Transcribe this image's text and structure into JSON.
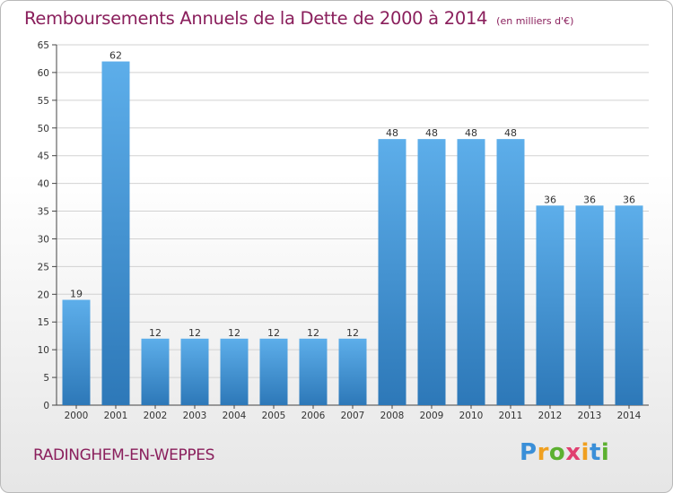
{
  "chart_data": {
    "type": "bar",
    "title": "Remboursements Annuels de la Dette de 2000 à 2014",
    "subtitle": "(en milliers d'€)",
    "categories": [
      "2000",
      "2001",
      "2002",
      "2003",
      "2004",
      "2005",
      "2006",
      "2007",
      "2008",
      "2009",
      "2010",
      "2011",
      "2012",
      "2013",
      "2014"
    ],
    "values": [
      19,
      62,
      12,
      12,
      12,
      12,
      12,
      12,
      48,
      48,
      48,
      48,
      36,
      36,
      36
    ],
    "ylim": [
      0,
      65
    ],
    "yticks": [
      0,
      5,
      10,
      15,
      20,
      25,
      30,
      35,
      40,
      45,
      50,
      55,
      60,
      65
    ],
    "grid": true,
    "bar_color_top": "#5daeea",
    "bar_color_bottom": "#2d78b8"
  },
  "footer": {
    "city": "RADINGHEM-EN-WEPPES",
    "logo_letters": [
      {
        "char": "P",
        "color": "#3a8fd8"
      },
      {
        "char": "r",
        "color": "#f0a020"
      },
      {
        "char": "o",
        "color": "#5cb030"
      },
      {
        "char": "x",
        "color": "#e04070"
      },
      {
        "char": "i",
        "color": "#f0a020"
      },
      {
        "char": "t",
        "color": "#3a8fd8"
      },
      {
        "char": "i",
        "color": "#5cb030"
      }
    ]
  },
  "colors": {
    "title": "#8a1f5c",
    "grid": "#d2d2d2",
    "axis": "#444444"
  }
}
